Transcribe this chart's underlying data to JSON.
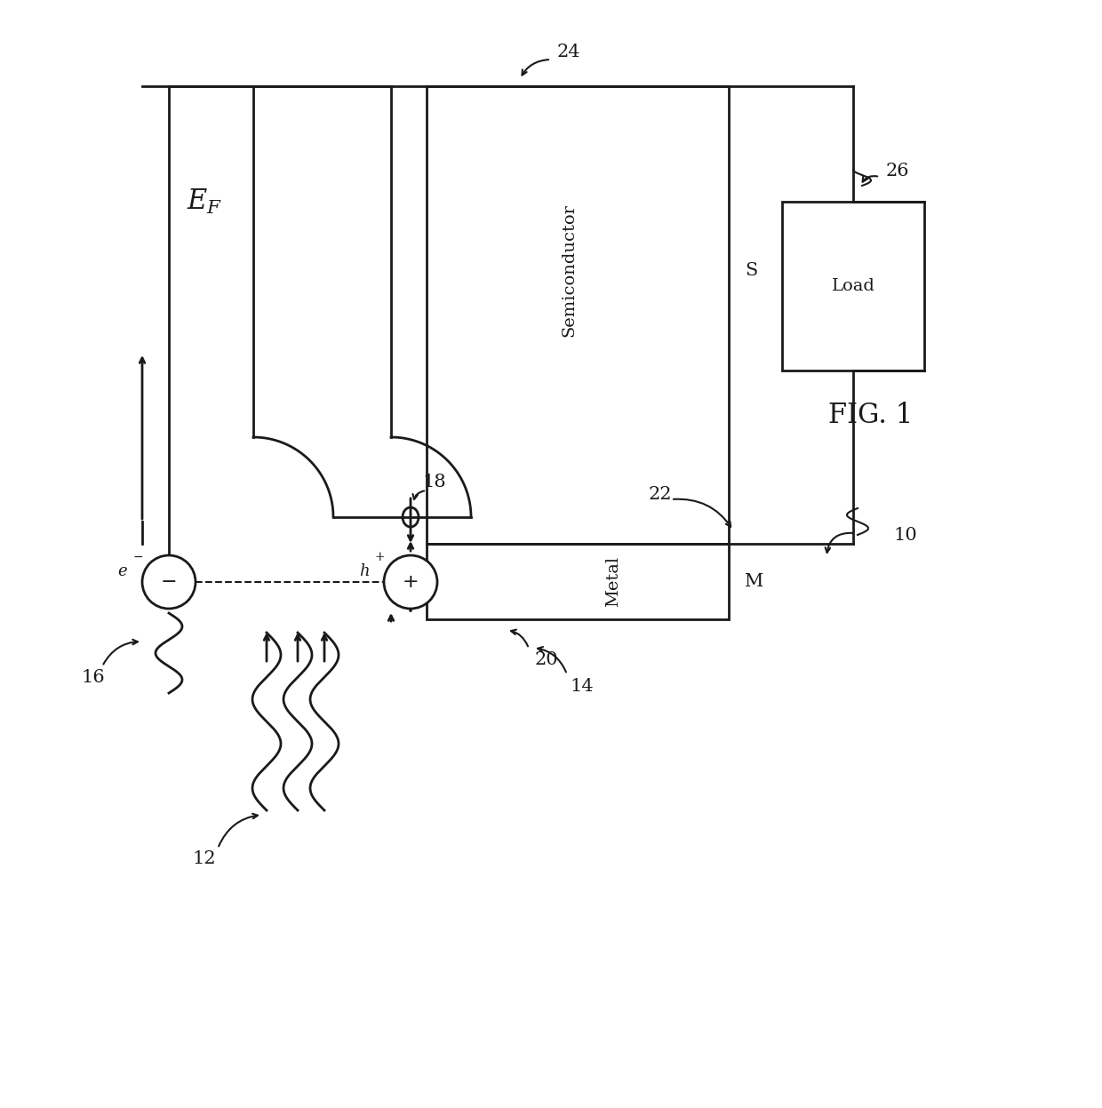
{
  "bg_color": "#ffffff",
  "line_color": "#1a1a1a",
  "fig_label": "FIG. 1",
  "labels": {
    "EF": "E",
    "EF_sub": "F",
    "semiconductor": "Semiconductor",
    "metal": "Metal",
    "load": "Load",
    "e_minus": "e",
    "e_minus_sup": "-",
    "h_plus": "h",
    "h_plus_sup": "+",
    "S": "S",
    "M": "M",
    "num_10": "10",
    "num_12": "12",
    "num_14": "14",
    "num_16": "16",
    "num_18": "18",
    "num_20": "20",
    "num_22": "22",
    "num_24": "24",
    "num_26": "26"
  }
}
